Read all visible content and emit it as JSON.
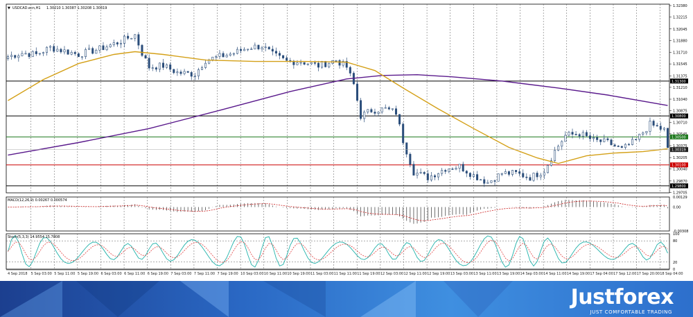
{
  "chart_data": [
    {
      "type": "candlestick",
      "symbol_header": "USDCAD.ecn,H1",
      "ohlc_readout": "1.30210 1.30387 1.30208 1.30319",
      "y_ticks": [
        "1.32380",
        "1.32215",
        "1.32045",
        "1.31880",
        "1.31710",
        "1.31545",
        "1.31375",
        "1.31210",
        "1.31040",
        "1.30875",
        "1.30710",
        "1.30545",
        "1.30375",
        "1.30205",
        "1.30040",
        "1.29870",
        "1.29705"
      ],
      "ylim": [
        1.297,
        1.324
      ],
      "x_labels": [
        "4 Sep 2018",
        "5 Sep 03:00",
        "5 Sep 11:00",
        "5 Sep 19:00",
        "6 Sep 03:00",
        "6 Sep 11:00",
        "6 Sep 19:00",
        "7 Sep 03:00",
        "7 Sep 11:00",
        "7 Sep 19:00",
        "10 Sep 03:00",
        "10 Sep 11:00",
        "10 Sep 19:00",
        "11 Sep 03:00",
        "11 Sep 11:00",
        "11 Sep 19:00",
        "12 Sep 03:00",
        "12 Sep 11:00",
        "12 Sep 19:00",
        "13 Sep 03:00",
        "13 Sep 11:00",
        "13 Sep 19:00",
        "14 Sep 03:00",
        "14 Sep 11:00",
        "14 Sep 19:00",
        "17 Sep 04:00",
        "17 Sep 12:00",
        "17 Sep 20:00",
        "18 Sep 04:00"
      ],
      "levels": [
        {
          "value": 1.313,
          "label": "1.31300",
          "color": "#000000"
        },
        {
          "value": 1.308,
          "label": "1.30800",
          "color": "#000000"
        },
        {
          "value": 1.305,
          "label": "1.30500",
          "color": "#1f7a1f"
        },
        {
          "value": 1.301,
          "label": "1.30100",
          "color": "#cc0000"
        },
        {
          "value": 1.298,
          "label": "1.29800",
          "color": "#000000"
        }
      ],
      "current_price": {
        "value": 1.30319,
        "label": "1.30319"
      },
      "anchors": [
        [
          0,
          1.3165
        ],
        [
          4,
          1.317
        ],
        [
          8,
          1.3168
        ],
        [
          12,
          1.3178
        ],
        [
          16,
          1.3173
        ],
        [
          20,
          1.3168
        ],
        [
          26,
          1.3176
        ],
        [
          31,
          1.3185
        ],
        [
          36,
          1.3196
        ],
        [
          38,
          1.317
        ],
        [
          40,
          1.315
        ],
        [
          44,
          1.3152
        ],
        [
          48,
          1.3142
        ],
        [
          53,
          1.314
        ],
        [
          56,
          1.316
        ],
        [
          60,
          1.3165
        ],
        [
          64,
          1.317
        ],
        [
          68,
          1.3178
        ],
        [
          72,
          1.318
        ],
        [
          75,
          1.3168
        ],
        [
          79,
          1.3158
        ],
        [
          83,
          1.3158
        ],
        [
          88,
          1.3152
        ],
        [
          93,
          1.316
        ],
        [
          96,
          1.315
        ],
        [
          98,
          1.3125
        ],
        [
          100,
          1.308
        ],
        [
          103,
          1.3088
        ],
        [
          107,
          1.309
        ],
        [
          110,
          1.3085
        ],
        [
          112,
          1.3045
        ],
        [
          115,
          1.3
        ],
        [
          119,
          1.2992
        ],
        [
          124,
          1.3005
        ],
        [
          128,
          1.3008
        ],
        [
          132,
          1.2995
        ],
        [
          136,
          1.2985
        ],
        [
          140,
          1.2998
        ],
        [
          144,
          1.2998
        ],
        [
          148,
          1.2992
        ],
        [
          152,
          1.3002
        ],
        [
          155,
          1.303
        ],
        [
          158,
          1.3052
        ],
        [
          162,
          1.3055
        ],
        [
          166,
          1.3045
        ],
        [
          170,
          1.3042
        ],
        [
          174,
          1.3032
        ],
        [
          178,
          1.3045
        ],
        [
          182,
          1.3068
        ],
        [
          186,
          1.306
        ],
        [
          187,
          1.3032
        ]
      ],
      "ma_fast": [
        [
          0,
          1.3102
        ],
        [
          10,
          1.3132
        ],
        [
          20,
          1.3155
        ],
        [
          30,
          1.3168
        ],
        [
          36,
          1.3172
        ],
        [
          44,
          1.3168
        ],
        [
          56,
          1.316
        ],
        [
          70,
          1.3158
        ],
        [
          84,
          1.3158
        ],
        [
          96,
          1.3157
        ],
        [
          104,
          1.3145
        ],
        [
          112,
          1.312
        ],
        [
          122,
          1.309
        ],
        [
          132,
          1.3062
        ],
        [
          142,
          1.3035
        ],
        [
          150,
          1.302
        ],
        [
          156,
          1.3012
        ],
        [
          164,
          1.3023
        ],
        [
          172,
          1.3027
        ],
        [
          180,
          1.3029
        ],
        [
          187,
          1.3033
        ]
      ],
      "ma_slow": [
        [
          0,
          1.3024
        ],
        [
          20,
          1.3042
        ],
        [
          40,
          1.3062
        ],
        [
          60,
          1.3088
        ],
        [
          80,
          1.3115
        ],
        [
          96,
          1.3133
        ],
        [
          106,
          1.3138
        ],
        [
          116,
          1.3139
        ],
        [
          126,
          1.3136
        ],
        [
          140,
          1.313
        ],
        [
          156,
          1.312
        ],
        [
          170,
          1.311
        ],
        [
          187,
          1.3095
        ]
      ],
      "series": [
        {
          "name": "",
          "color": "#d4a017",
          "role": "moving average (fast)"
        },
        {
          "name": "",
          "color": "#5a1a8c",
          "role": "moving average (slow)"
        }
      ]
    },
    {
      "type": "bar",
      "header": "MACD(12,26,9) 0.00267 0.000574",
      "y_ticks": [
        "0.00129",
        "0.00",
        "-0.00308"
      ],
      "ylim": [
        -0.00308,
        0.00129
      ]
    },
    {
      "type": "line",
      "header": "Stoch(5,3,3) 14.9554 15.7808",
      "y_ticks": [
        "100",
        "80",
        "20",
        "0"
      ],
      "ylim": [
        0,
        100
      ],
      "levels": [
        80,
        20
      ],
      "series": [
        {
          "name": "",
          "color": "#20b2aa"
        },
        {
          "name": "",
          "color": "#e04040"
        }
      ]
    }
  ],
  "branding": {
    "logo_text": "Justforex",
    "tagline": "JUST COMFORTABLE TRADING",
    "color": "#ffffff"
  }
}
